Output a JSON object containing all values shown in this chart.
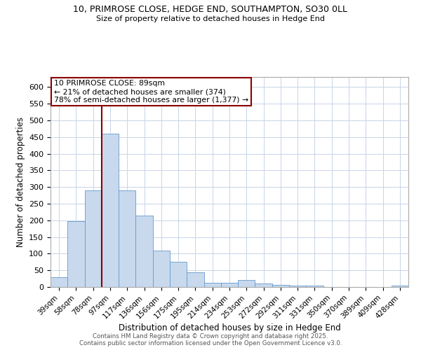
{
  "title_line1": "10, PRIMROSE CLOSE, HEDGE END, SOUTHAMPTON, SO30 0LL",
  "title_line2": "Size of property relative to detached houses in Hedge End",
  "xlabel": "Distribution of detached houses by size in Hedge End",
  "ylabel": "Number of detached properties",
  "categories": [
    "39sqm",
    "58sqm",
    "78sqm",
    "97sqm",
    "117sqm",
    "136sqm",
    "156sqm",
    "175sqm",
    "195sqm",
    "214sqm",
    "234sqm",
    "253sqm",
    "272sqm",
    "292sqm",
    "311sqm",
    "331sqm",
    "350sqm",
    "370sqm",
    "389sqm",
    "409sqm",
    "428sqm"
  ],
  "values": [
    30,
    197,
    290,
    460,
    290,
    215,
    110,
    75,
    45,
    13,
    13,
    20,
    10,
    7,
    5,
    5,
    0,
    0,
    0,
    0,
    5
  ],
  "bar_color": "#c8d9ee",
  "bar_edge_color": "#6699cc",
  "vline_color": "#8b0000",
  "annotation_text": "10 PRIMROSE CLOSE: 89sqm\n← 21% of detached houses are smaller (374)\n78% of semi-detached houses are larger (1,377) →",
  "annotation_box_color": "#ffffff",
  "annotation_box_edge": "#8b0000",
  "footer_line1": "Contains HM Land Registry data © Crown copyright and database right 2025.",
  "footer_line2": "Contains public sector information licensed under the Open Government Licence v3.0.",
  "ylim": [
    0,
    630
  ],
  "yticks": [
    0,
    50,
    100,
    150,
    200,
    250,
    300,
    350,
    400,
    450,
    500,
    550,
    600
  ],
  "bg_color": "#ffffff",
  "grid_color": "#c8d4e8"
}
